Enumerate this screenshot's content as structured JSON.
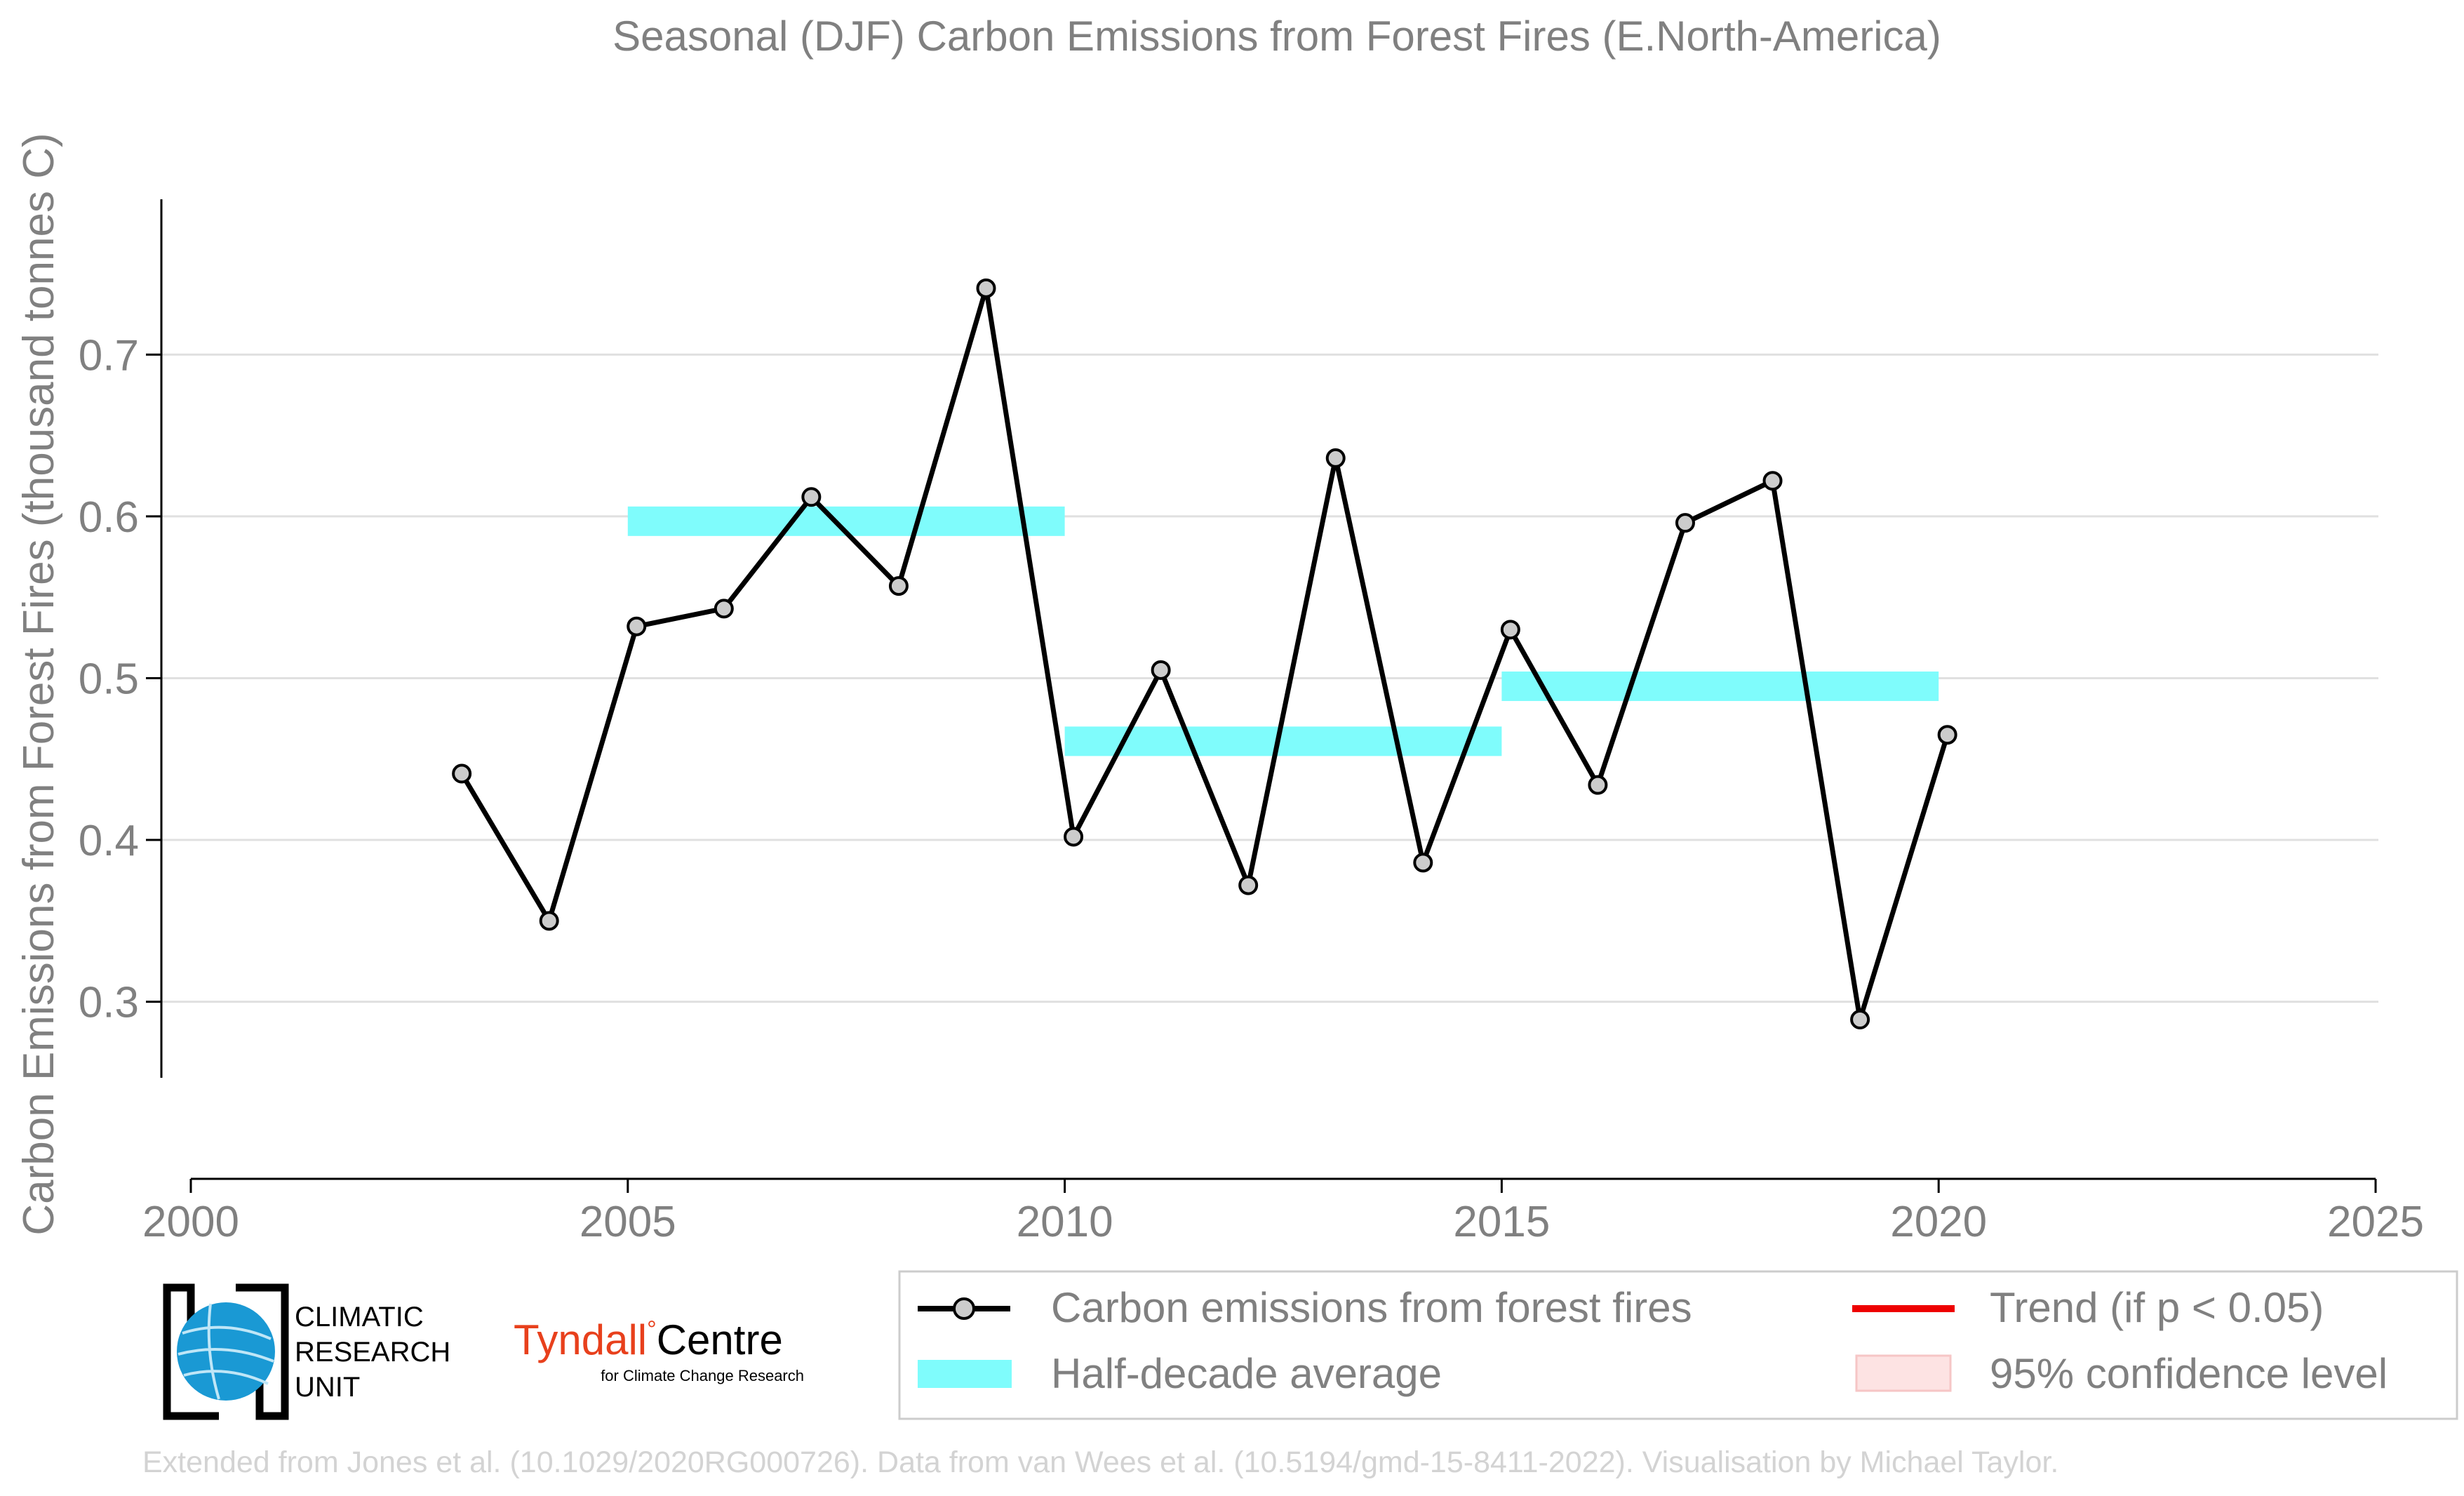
{
  "chart_data": {
    "type": "line",
    "title": "Seasonal (DJF) Carbon Emissions from Forest Fires (E.North-America)",
    "ylabel": "Carbon Emissions from Forest Fires (thousand tonnes C)",
    "xlabel": "",
    "xlim": [
      2000,
      2025
    ],
    "ylim": [
      0.253,
      0.796
    ],
    "x_ticks": [
      2000,
      2005,
      2010,
      2015,
      2020,
      2025
    ],
    "y_ticks": [
      0.3,
      0.4,
      0.5,
      0.6,
      0.7
    ],
    "y_tick_labels": [
      "0.3",
      "0.4",
      "0.5",
      "0.6",
      "0.7"
    ],
    "grid": "horizontal",
    "series": [
      {
        "name": "Carbon emissions from forest fires",
        "color": "#000000",
        "marker_fill": "#cccccc",
        "x": [
          2003.1,
          2004.1,
          2005.1,
          2006.1,
          2007.1,
          2008.1,
          2009.1,
          2010.1,
          2011.1,
          2012.1,
          2013.1,
          2014.1,
          2015.1,
          2016.1,
          2017.1,
          2018.1,
          2019.1,
          2020.1
        ],
        "values": [
          0.441,
          0.35,
          0.532,
          0.543,
          0.612,
          0.557,
          0.741,
          0.402,
          0.505,
          0.372,
          0.636,
          0.386,
          0.53,
          0.434,
          0.596,
          0.622,
          0.289,
          0.465
        ]
      }
    ],
    "half_decade_average": {
      "name": "Half-decade average",
      "color": "#7ffcfc",
      "segments": [
        {
          "x_start": 2005,
          "x_end": 2010,
          "value": 0.597
        },
        {
          "x_start": 2010,
          "x_end": 2015,
          "value": 0.461
        },
        {
          "x_start": 2015,
          "x_end": 2020,
          "value": 0.495
        }
      ]
    },
    "legend": {
      "placement": "bottom",
      "items": [
        {
          "label": "Carbon emissions from forest fires",
          "kind": "line-marker",
          "color": "#000000"
        },
        {
          "label": "Trend (if p < 0.05)",
          "kind": "line",
          "color": "#ee0000"
        },
        {
          "label": "Half-decade average",
          "kind": "band",
          "color": "#7ffcfc"
        },
        {
          "label": "95% confidence level",
          "kind": "patch",
          "color": "#fde3e3"
        }
      ]
    }
  },
  "logos": {
    "cru_line1": "CLIMATIC",
    "cru_line2": "RESEARCH",
    "cru_line3": "UNIT",
    "tyndall_name": "Tyndall",
    "tyndall_suffix": "Centre",
    "tyndall_sub": "for Climate Change Research"
  },
  "footer": "Extended from Jones et al. (10.1029/2020RG000726). Data from van Wees et al. (10.5194/gmd-15-8411-2022). Visualisation by Michael Taylor."
}
